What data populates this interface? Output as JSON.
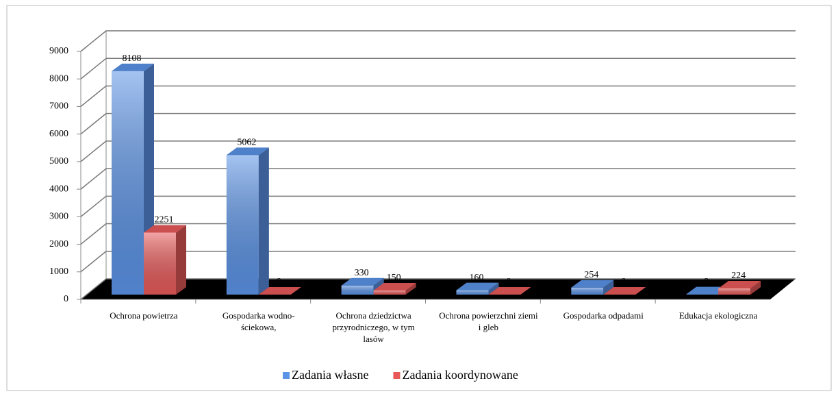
{
  "chart_data": {
    "type": "bar3d",
    "categories": [
      "Ochrona powietrza",
      "Gospodarka wodno-ściekowa,",
      "Ochrona dziedzictwa przyrodniczego, w tym lasów",
      "Ochrona powierzchni ziemi i gleb",
      "Gospodarka odpadami",
      "Edukacja ekologiczna"
    ],
    "series": [
      {
        "name": "Zadania własne",
        "color": "#5b93e6",
        "values": [
          8108,
          5062,
          330,
          160,
          254,
          8
        ]
      },
      {
        "name": "Zadania koordynowane",
        "color": "#e85a5a",
        "values": [
          2251,
          0,
          150,
          0,
          0,
          224
        ]
      }
    ],
    "ylim": [
      0,
      9000
    ],
    "yticks": [
      0,
      1000,
      2000,
      3000,
      4000,
      5000,
      6000,
      7000,
      8000,
      9000
    ],
    "grid": true,
    "legend": "bottom"
  }
}
